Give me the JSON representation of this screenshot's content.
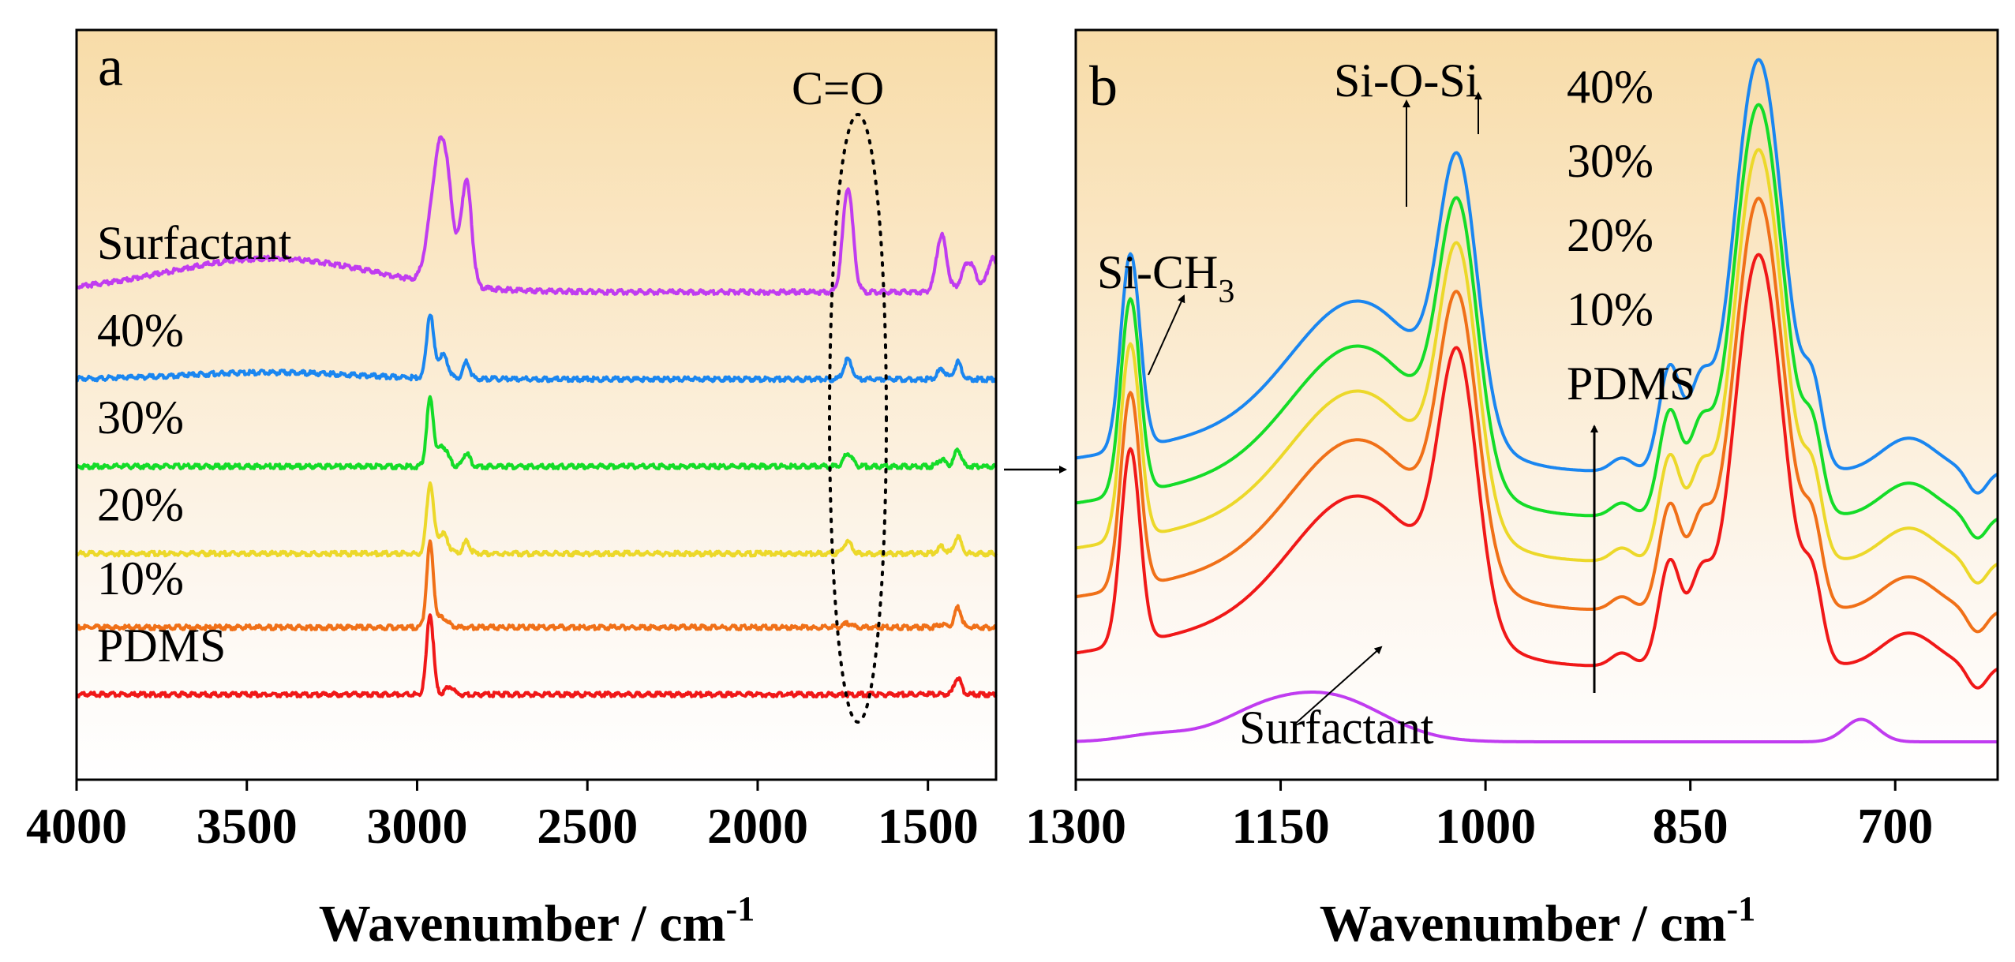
{
  "chart_data": [
    {
      "type": "line",
      "panel_label": "a",
      "xlabel": "Wavenumber / cm",
      "xlabel_sup": "-1",
      "xlim": [
        4000,
        1300
      ],
      "x_ticks": [
        "4000",
        "3500",
        "3000",
        "2500",
        "2000",
        "1500"
      ],
      "x_tick_values": [
        4000,
        3500,
        3000,
        2500,
        2000,
        1500
      ],
      "annotation": "C=O",
      "series": [
        {
          "name": "Surfactant",
          "color": "#c03cf0",
          "offset": 6.0,
          "peaks": [
            [
              3430,
              300,
              0.5
            ],
            [
              2960,
              20,
              0.4
            ],
            [
              2925,
              25,
              2.1
            ],
            [
              2855,
              15,
              1.55
            ],
            [
              1735,
              15,
              1.55
            ],
            [
              1460,
              15,
              0.85
            ],
            [
              1380,
              20,
              0.45
            ],
            [
              1310,
              15,
              0.5
            ]
          ]
        },
        {
          "name": "40%",
          "color": "#1a86f0",
          "offset": 4.7,
          "peaks": [
            [
              3430,
              250,
              0.1
            ],
            [
              2962,
              10,
              0.95
            ],
            [
              2925,
              15,
              0.35
            ],
            [
              2855,
              10,
              0.25
            ],
            [
              1735,
              12,
              0.3
            ],
            [
              1412,
              10,
              0.25
            ],
            [
              1460,
              12,
              0.15
            ]
          ]
        },
        {
          "name": "30%",
          "color": "#14dc28",
          "offset": 3.4,
          "peaks": [
            [
              2962,
              10,
              1.0
            ],
            [
              2925,
              15,
              0.3
            ],
            [
              2855,
              10,
              0.2
            ],
            [
              1735,
              12,
              0.2
            ],
            [
              1412,
              10,
              0.25
            ],
            [
              1460,
              12,
              0.1
            ]
          ]
        },
        {
          "name": "20%",
          "color": "#ecd82a",
          "offset": 2.1,
          "peaks": [
            [
              2962,
              10,
              1.05
            ],
            [
              2925,
              15,
              0.3
            ],
            [
              2855,
              10,
              0.18
            ],
            [
              1735,
              12,
              0.18
            ],
            [
              1412,
              10,
              0.25
            ],
            [
              1460,
              12,
              0.1
            ]
          ]
        },
        {
          "name": "10%",
          "color": "#f07018",
          "offset": 1.0,
          "peaks": [
            [
              2962,
              10,
              1.25
            ],
            [
              2925,
              15,
              0.15
            ],
            [
              1735,
              12,
              0.06
            ],
            [
              1412,
              10,
              0.3
            ],
            [
              1460,
              12,
              0.05
            ]
          ]
        },
        {
          "name": "PDMS",
          "color": "#f01818",
          "offset": 0.0,
          "peaks": [
            [
              2962,
              10,
              1.2
            ],
            [
              2905,
              12,
              0.12
            ],
            [
              1412,
              10,
              0.25
            ]
          ]
        }
      ]
    },
    {
      "type": "line",
      "panel_label": "b",
      "xlabel": "Wavenumber / cm",
      "xlabel_sup": "-1",
      "xlim": [
        1300,
        625
      ],
      "x_ticks": [
        "1300",
        "1150",
        "1000",
        "850",
        "700"
      ],
      "x_tick_values": [
        1300,
        1150,
        1000,
        850,
        700
      ],
      "annotations": {
        "si_ch3": "Si-CH",
        "si_ch3_sub": "3",
        "si_o_si": "Si-O-Si",
        "surfactant": "Surfactant"
      },
      "legend_order": [
        "40%",
        "30%",
        "20%",
        "10%",
        "PDMS"
      ],
      "series": [
        {
          "name": "40%",
          "color": "#1a86f0",
          "offset": 2.6
        },
        {
          "name": "30%",
          "color": "#14dc28",
          "offset": 2.0
        },
        {
          "name": "20%",
          "color": "#ecd82a",
          "offset": 1.4
        },
        {
          "name": "10%",
          "color": "#f07018",
          "offset": 0.75
        },
        {
          "name": "PDMS",
          "color": "#f01818",
          "offset": 0.0
        },
        {
          "name": "Surfactant",
          "color": "#c03cf0",
          "offset": -1.0
        }
      ]
    }
  ]
}
